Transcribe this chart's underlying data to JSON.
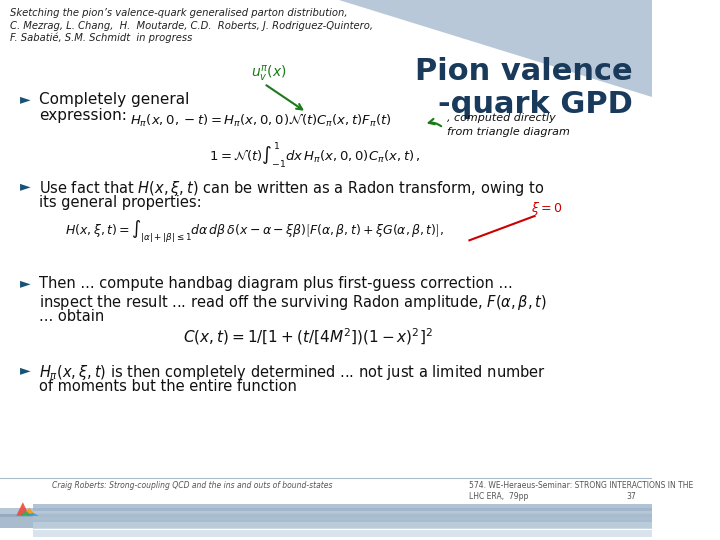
{
  "bg_color": "#ffffff",
  "slide_bg": "#f0f4f8",
  "title_text": "Pion valence\n-quark GPD",
  "title_color": "#1a3a5c",
  "header_lines": [
    "Sketching the pion’s valence-quark generalised parton distribution,",
    "C. Mezrag, L. Chang,  H.  Moutarde, C.D.  Roberts, J. Rodriguez-Quintero,",
    "F. Sabatié, S.M. Schmidt  in progress"
  ],
  "header_color": "#222222",
  "bullet_color": "#1a5276",
  "accent_color_green": "#1a7a1a",
  "accent_color_red": "#cc0000",
  "footer_left": "Craig Roberts: Strong-coupling QCD and the ins and outs of bound-states",
  "footer_right_line1": "574. WE-Heraeus-Seminar: STRONG INTERACTIONS IN THE",
  "footer_right_line2": "LHC ERA,  79pp",
  "footer_page": "37",
  "footer_color": "#555555",
  "banner_color": "#b8c8d8",
  "bottom_bar_color": "#c8d8e8",
  "bottom_bar_color2": "#a0b8cc"
}
